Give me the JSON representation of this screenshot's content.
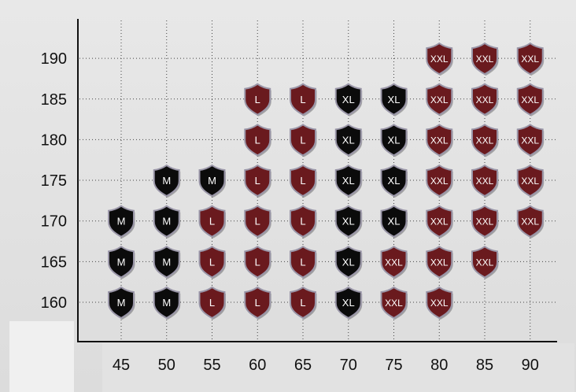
{
  "chart_data": {
    "type": "scatter",
    "title": "",
    "xlabel": "",
    "ylabel": "",
    "x_ticks": [
      45,
      50,
      55,
      60,
      65,
      70,
      75,
      80,
      85,
      90
    ],
    "y_ticks": [
      160,
      165,
      170,
      175,
      180,
      185,
      190
    ],
    "x_tick_labels": [
      "45",
      "50",
      "55",
      "60",
      "65",
      "70",
      "75",
      "80",
      "85",
      "90"
    ],
    "y_tick_labels": [
      "160",
      "165",
      "170",
      "175",
      "180",
      "185",
      "190"
    ],
    "grid": true,
    "size_colors": {
      "M": "#0b0b0b",
      "L": "#6a1a1e",
      "XL": "#0b0b0b",
      "XXL": "#6a1a1e"
    },
    "points": [
      {
        "x": 45,
        "y": 170,
        "size": "M"
      },
      {
        "x": 45,
        "y": 165,
        "size": "M"
      },
      {
        "x": 45,
        "y": 160,
        "size": "M"
      },
      {
        "x": 50,
        "y": 175,
        "size": "M"
      },
      {
        "x": 50,
        "y": 170,
        "size": "M"
      },
      {
        "x": 50,
        "y": 165,
        "size": "M"
      },
      {
        "x": 50,
        "y": 160,
        "size": "M"
      },
      {
        "x": 55,
        "y": 175,
        "size": "M"
      },
      {
        "x": 55,
        "y": 170,
        "size": "L"
      },
      {
        "x": 55,
        "y": 165,
        "size": "L"
      },
      {
        "x": 55,
        "y": 160,
        "size": "L"
      },
      {
        "x": 60,
        "y": 185,
        "size": "L"
      },
      {
        "x": 60,
        "y": 180,
        "size": "L"
      },
      {
        "x": 60,
        "y": 175,
        "size": "L"
      },
      {
        "x": 60,
        "y": 170,
        "size": "L"
      },
      {
        "x": 60,
        "y": 165,
        "size": "L"
      },
      {
        "x": 60,
        "y": 160,
        "size": "L"
      },
      {
        "x": 65,
        "y": 185,
        "size": "L"
      },
      {
        "x": 65,
        "y": 180,
        "size": "L"
      },
      {
        "x": 65,
        "y": 175,
        "size": "L"
      },
      {
        "x": 65,
        "y": 170,
        "size": "L"
      },
      {
        "x": 65,
        "y": 165,
        "size": "L"
      },
      {
        "x": 65,
        "y": 160,
        "size": "L"
      },
      {
        "x": 70,
        "y": 185,
        "size": "XL"
      },
      {
        "x": 70,
        "y": 180,
        "size": "XL"
      },
      {
        "x": 70,
        "y": 175,
        "size": "XL"
      },
      {
        "x": 70,
        "y": 170,
        "size": "XL"
      },
      {
        "x": 70,
        "y": 165,
        "size": "XL"
      },
      {
        "x": 70,
        "y": 160,
        "size": "XL"
      },
      {
        "x": 75,
        "y": 185,
        "size": "XL"
      },
      {
        "x": 75,
        "y": 180,
        "size": "XL"
      },
      {
        "x": 75,
        "y": 175,
        "size": "XL"
      },
      {
        "x": 75,
        "y": 170,
        "size": "XL"
      },
      {
        "x": 75,
        "y": 165,
        "size": "XXL"
      },
      {
        "x": 75,
        "y": 160,
        "size": "XXL"
      },
      {
        "x": 80,
        "y": 190,
        "size": "XXL"
      },
      {
        "x": 80,
        "y": 185,
        "size": "XXL"
      },
      {
        "x": 80,
        "y": 180,
        "size": "XXL"
      },
      {
        "x": 80,
        "y": 175,
        "size": "XXL"
      },
      {
        "x": 80,
        "y": 170,
        "size": "XXL"
      },
      {
        "x": 80,
        "y": 165,
        "size": "XXL"
      },
      {
        "x": 80,
        "y": 160,
        "size": "XXL"
      },
      {
        "x": 85,
        "y": 190,
        "size": "XXL"
      },
      {
        "x": 85,
        "y": 185,
        "size": "XXL"
      },
      {
        "x": 85,
        "y": 180,
        "size": "XXL"
      },
      {
        "x": 85,
        "y": 175,
        "size": "XXL"
      },
      {
        "x": 85,
        "y": 170,
        "size": "XXL"
      },
      {
        "x": 85,
        "y": 165,
        "size": "XXL"
      },
      {
        "x": 90,
        "y": 190,
        "size": "XXL"
      },
      {
        "x": 90,
        "y": 185,
        "size": "XXL"
      },
      {
        "x": 90,
        "y": 180,
        "size": "XXL"
      },
      {
        "x": 90,
        "y": 175,
        "size": "XXL"
      },
      {
        "x": 90,
        "y": 170,
        "size": "XXL"
      }
    ]
  }
}
